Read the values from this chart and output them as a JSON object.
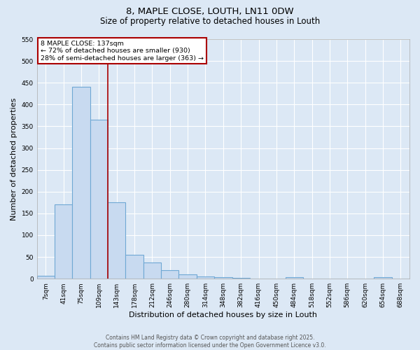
{
  "title_line1": "8, MAPLE CLOSE, LOUTH, LN11 0DW",
  "title_line2": "Size of property relative to detached houses in Louth",
  "xlabel": "Distribution of detached houses by size in Louth",
  "ylabel": "Number of detached properties",
  "bin_labels": [
    "7sqm",
    "41sqm",
    "75sqm",
    "109sqm",
    "143sqm",
    "178sqm",
    "212sqm",
    "246sqm",
    "280sqm",
    "314sqm",
    "348sqm",
    "382sqm",
    "416sqm",
    "450sqm",
    "484sqm",
    "518sqm",
    "552sqm",
    "586sqm",
    "620sqm",
    "654sqm",
    "688sqm"
  ],
  "bar_heights": [
    7,
    170,
    440,
    365,
    175,
    55,
    38,
    20,
    10,
    5,
    4,
    2,
    1,
    1,
    3,
    1,
    1,
    0,
    1,
    4,
    0
  ],
  "bar_color": "#c8daf0",
  "bar_edgecolor": "#6fa8d4",
  "bar_linewidth": 0.8,
  "annotation_text": "8 MAPLE CLOSE: 137sqm\n← 72% of detached houses are smaller (930)\n28% of semi-detached houses are larger (363) →",
  "annotation_box_color": "#ffffff",
  "annotation_box_edgecolor": "#aa0000",
  "red_line_color": "#aa0000",
  "ylim": [
    0,
    550
  ],
  "yticks": [
    0,
    50,
    100,
    150,
    200,
    250,
    300,
    350,
    400,
    450,
    500,
    550
  ],
  "background_color": "#dce8f5",
  "axes_background": "#dce8f5",
  "grid_color": "#ffffff",
  "footer_line1": "Contains HM Land Registry data © Crown copyright and database right 2025.",
  "footer_line2": "Contains public sector information licensed under the Open Government Licence v3.0.",
  "title_fontsize": 9.5,
  "subtitle_fontsize": 8.5,
  "tick_fontsize": 6.5,
  "label_fontsize": 8,
  "footer_fontsize": 5.5
}
